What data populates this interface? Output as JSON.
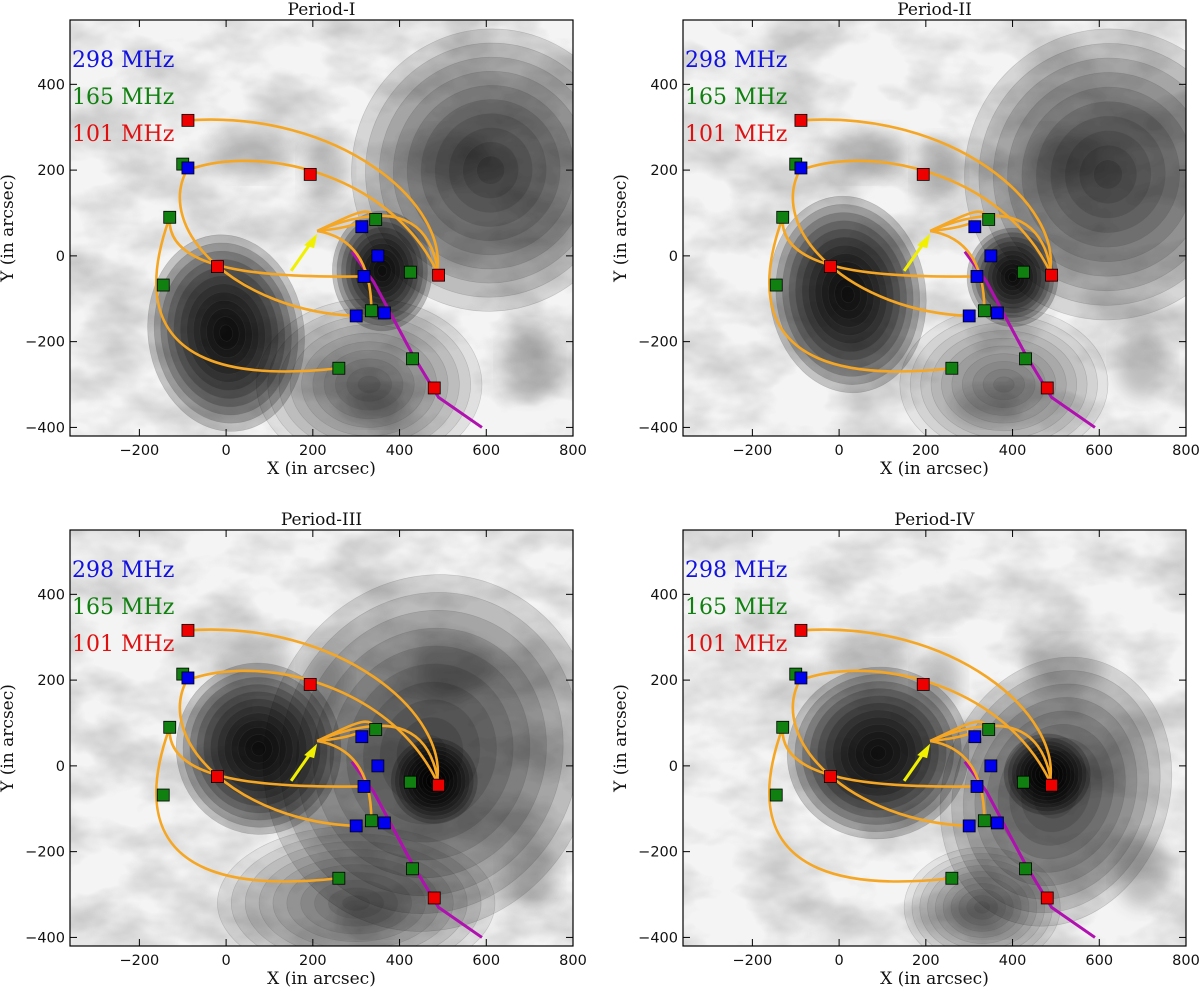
{
  "chart_data": {
    "type": "multi-panel contour map",
    "x_label": "X (in arcsec)",
    "y_label": "Y (in arcsec)",
    "xlim": [
      -360,
      800
    ],
    "ylim": [
      -420,
      550
    ],
    "x_ticks": [
      "−200",
      "0",
      "200",
      "400",
      "600",
      "800"
    ],
    "x_tick_values": [
      -200,
      0,
      200,
      400,
      600,
      800
    ],
    "y_ticks": [
      "−400",
      "−200",
      "0",
      "200",
      "400"
    ],
    "y_tick_values": [
      -400,
      -200,
      0,
      200,
      400
    ],
    "legend": [
      {
        "label": "298 MHz",
        "color": "#1010e0"
      },
      {
        "label": "165 MHz",
        "color": "#108010"
      },
      {
        "label": "101 MHz",
        "color": "#e01010"
      }
    ],
    "colors": {
      "loop": "#f5a623",
      "arc": "#b010b0",
      "arrow": "#f0f000",
      "red_marker": "#ee0000",
      "green_marker": "#108010",
      "blue_marker": "#0000ee"
    },
    "markers": {
      "red": [
        [
          -88,
          316
        ],
        [
          194,
          190
        ],
        [
          -20,
          -25
        ],
        [
          490,
          -45
        ],
        [
          480,
          -308
        ]
      ],
      "green": [
        [
          -100,
          214
        ],
        [
          -130,
          90
        ],
        [
          -145,
          -68
        ],
        [
          345,
          85
        ],
        [
          425,
          -38
        ],
        [
          335,
          -128
        ],
        [
          430,
          -240
        ],
        [
          260,
          -262
        ]
      ],
      "blue": [
        [
          -88,
          205
        ],
        [
          313,
          68
        ],
        [
          350,
          0
        ],
        [
          318,
          -48
        ],
        [
          300,
          -140
        ],
        [
          365,
          -133
        ]
      ]
    },
    "loops": [
      {
        "x": [
          -88,
          260,
          520,
          485
        ],
        "y": [
          316,
          340,
          120,
          -45
        ]
      },
      {
        "x": [
          -75,
          100,
          390,
          490
        ],
        "y": [
          205,
          260,
          180,
          -45
        ]
      },
      {
        "x": [
          -88,
          -170,
          30,
          300
        ],
        "y": [
          205,
          60,
          -130,
          -140
        ]
      },
      {
        "x": [
          -130,
          -270,
          100,
          260
        ],
        "y": [
          90,
          -300,
          -280,
          -262
        ]
      },
      {
        "x": [
          -130,
          -140,
          100,
          318
        ],
        "y": [
          90,
          -40,
          -50,
          -48
        ]
      },
      {
        "x": [
          210,
          330,
          300,
          313
        ],
        "y": [
          58,
          70,
          90,
          68
        ]
      },
      {
        "x": [
          210,
          320,
          335,
          335
        ],
        "y": [
          58,
          40,
          -60,
          -128
        ]
      },
      {
        "x": [
          210,
          300,
          330,
          345
        ],
        "y": [
          58,
          100,
          120,
          85
        ]
      },
      {
        "x": [
          210,
          360,
          470,
          490
        ],
        "y": [
          58,
          120,
          110,
          -45
        ]
      }
    ],
    "arc": {
      "x": [
        290,
        340,
        430,
        490,
        590
      ],
      "y": [
        10,
        -60,
        -230,
        -330,
        -400
      ]
    },
    "panels": [
      {
        "title": "Period-I",
        "sources": {
          "green": {
            "cx": 0,
            "cy": -180,
            "rx": 180,
            "ry": 230,
            "rot": -8
          },
          "blue": {
            "cx": 360,
            "cy": -35,
            "rx": 115,
            "ry": 140,
            "rot": 0
          },
          "red": [
            {
              "cx": 610,
              "cy": 200,
              "rx": 320,
              "ry": 330,
              "rot": 20,
              "a": 0.55
            },
            {
              "cx": 330,
              "cy": -300,
              "rx": 260,
              "ry": 200,
              "rot": 0,
              "a": 0.35
            }
          ]
        }
      },
      {
        "title": "Period-II",
        "sources": {
          "green": {
            "cx": 20,
            "cy": -90,
            "rx": 180,
            "ry": 230,
            "rot": -8
          },
          "blue": {
            "cx": 400,
            "cy": -50,
            "rx": 105,
            "ry": 115,
            "rot": 0
          },
          "red": [
            {
              "cx": 620,
              "cy": 190,
              "rx": 330,
              "ry": 340,
              "rot": 20,
              "a": 0.55
            },
            {
              "cx": 380,
              "cy": -300,
              "rx": 240,
              "ry": 180,
              "rot": 0,
              "a": 0.3
            }
          ]
        }
      },
      {
        "title": "Period-III",
        "sources": {
          "green": {
            "cx": 75,
            "cy": 40,
            "rx": 190,
            "ry": 200,
            "rot": -10
          },
          "blue": {
            "cx": 480,
            "cy": -35,
            "rx": 100,
            "ry": 100,
            "rot": 0
          },
          "red": [
            {
              "cx": 470,
              "cy": 30,
              "rx": 380,
              "ry": 420,
              "rot": 20,
              "a": 0.55
            },
            {
              "cx": 300,
              "cy": -320,
              "rx": 320,
              "ry": 180,
              "rot": 0,
              "a": 0.35
            }
          ]
        }
      },
      {
        "title": "Period-IV",
        "sources": {
          "green": {
            "cx": 90,
            "cy": 30,
            "rx": 210,
            "ry": 200,
            "rot": -10
          },
          "blue": {
            "cx": 480,
            "cy": -20,
            "rx": 100,
            "ry": 95,
            "rot": 0
          },
          "red": [
            {
              "cx": 500,
              "cy": -60,
              "rx": 260,
              "ry": 320,
              "rot": 20,
              "a": 0.55
            },
            {
              "cx": 330,
              "cy": -330,
              "rx": 180,
              "ry": 140,
              "rot": 0,
              "a": 0.3
            }
          ]
        }
      }
    ]
  }
}
